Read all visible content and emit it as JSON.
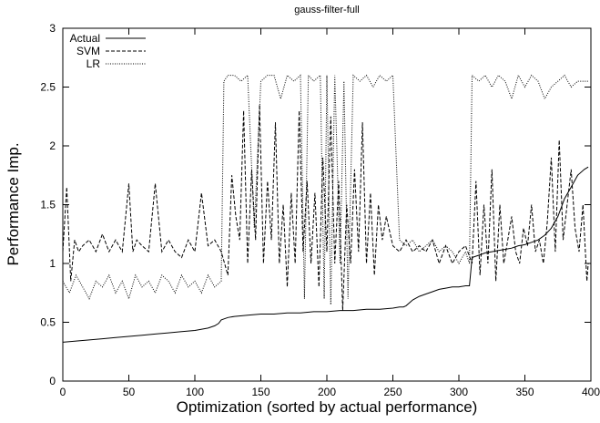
{
  "chart_data": {
    "type": "line",
    "title": "gauss-filter-full",
    "xlabel": "Optimization (sorted by actual performance)",
    "ylabel": "Performance Imp.",
    "xlim": [
      0,
      400
    ],
    "ylim": [
      0,
      3
    ],
    "xticks": [
      0,
      50,
      100,
      150,
      200,
      250,
      300,
      350,
      400
    ],
    "yticks": [
      0,
      0.5,
      1,
      1.5,
      2,
      2.5,
      3
    ],
    "yticklabels": [
      "0",
      "0.5",
      "1",
      "1.5",
      "2",
      "2.5",
      "3"
    ],
    "grid": false,
    "legend_position": "top-left",
    "series": [
      {
        "name": "Actual",
        "style": "solid",
        "x": [
          0,
          10,
          20,
          30,
          40,
          50,
          60,
          70,
          80,
          90,
          100,
          110,
          115,
          118,
          120,
          125,
          130,
          140,
          150,
          160,
          170,
          180,
          190,
          200,
          210,
          220,
          230,
          240,
          250,
          255,
          258,
          260,
          265,
          270,
          275,
          280,
          285,
          290,
          295,
          300,
          305,
          308,
          310,
          315,
          320,
          325,
          330,
          335,
          340,
          345,
          350,
          355,
          360,
          365,
          370,
          375,
          380,
          385,
          390,
          395,
          398
        ],
        "y": [
          0.33,
          0.34,
          0.35,
          0.36,
          0.37,
          0.38,
          0.39,
          0.4,
          0.41,
          0.42,
          0.43,
          0.45,
          0.47,
          0.49,
          0.52,
          0.54,
          0.55,
          0.56,
          0.57,
          0.57,
          0.58,
          0.58,
          0.59,
          0.59,
          0.6,
          0.6,
          0.61,
          0.61,
          0.62,
          0.63,
          0.63,
          0.64,
          0.69,
          0.72,
          0.74,
          0.76,
          0.78,
          0.79,
          0.8,
          0.8,
          0.81,
          0.81,
          1.05,
          1.07,
          1.09,
          1.1,
          1.11,
          1.12,
          1.13,
          1.15,
          1.16,
          1.18,
          1.2,
          1.24,
          1.3,
          1.4,
          1.55,
          1.65,
          1.75,
          1.8,
          1.82
        ]
      },
      {
        "name": "SVM",
        "style": "dashed",
        "x": [
          0,
          3,
          6,
          9,
          12,
          15,
          20,
          25,
          30,
          35,
          40,
          45,
          50,
          53,
          56,
          60,
          65,
          70,
          75,
          80,
          85,
          90,
          95,
          100,
          105,
          110,
          115,
          120,
          125,
          128,
          131,
          134,
          137,
          140,
          143,
          146,
          149,
          152,
          155,
          158,
          161,
          164,
          167,
          170,
          173,
          176,
          179,
          182,
          185,
          188,
          191,
          194,
          197,
          200,
          203,
          206,
          209,
          212,
          215,
          218,
          221,
          224,
          227,
          230,
          233,
          236,
          239,
          242,
          245,
          250,
          255,
          260,
          265,
          270,
          275,
          280,
          285,
          290,
          295,
          300,
          305,
          310,
          313,
          316,
          319,
          322,
          325,
          328,
          331,
          334,
          337,
          340,
          343,
          346,
          349,
          352,
          355,
          358,
          361,
          364,
          367,
          370,
          373,
          376,
          379,
          382,
          385,
          388,
          391,
          394,
          397,
          398
        ],
        "y": [
          1.1,
          1.65,
          0.85,
          1.2,
          1.1,
          1.15,
          1.2,
          1.1,
          1.25,
          1.1,
          1.2,
          1.1,
          1.68,
          1.1,
          1.2,
          1.15,
          1.1,
          1.68,
          1.1,
          1.2,
          1.1,
          1.05,
          1.2,
          1.1,
          1.6,
          1.15,
          1.2,
          1.1,
          0.9,
          1.75,
          1.4,
          1.2,
          2.3,
          1.0,
          1.8,
          1.2,
          2.35,
          1.0,
          1.7,
          1.2,
          2.2,
          1.0,
          1.5,
          0.8,
          1.6,
          1.0,
          2.3,
          1.1,
          1.7,
          1.0,
          1.6,
          0.8,
          1.9,
          1.1,
          2.25,
          1.0,
          1.7,
          0.6,
          1.5,
          1.0,
          1.8,
          1.1,
          2.2,
          1.0,
          1.6,
          0.9,
          1.5,
          1.2,
          1.4,
          1.15,
          1.1,
          1.2,
          1.1,
          1.15,
          1.1,
          1.2,
          1.0,
          1.15,
          1.0,
          1.1,
          1.15,
          1.0,
          1.7,
          0.9,
          1.5,
          1.0,
          1.8,
          0.85,
          1.5,
          1.0,
          1.2,
          1.4,
          1.1,
          1.0,
          1.3,
          1.15,
          1.5,
          1.1,
          1.2,
          1.0,
          1.35,
          1.9,
          1.1,
          2.05,
          1.2,
          1.5,
          1.8,
          1.3,
          1.1,
          1.5,
          0.85,
          1.0
        ]
      },
      {
        "name": "LR",
        "style": "dotted",
        "x": [
          0,
          5,
          10,
          15,
          20,
          25,
          30,
          35,
          40,
          45,
          50,
          55,
          60,
          65,
          70,
          75,
          80,
          85,
          90,
          95,
          100,
          105,
          110,
          115,
          120,
          122,
          125,
          130,
          135,
          140,
          145,
          150,
          155,
          160,
          165,
          170,
          175,
          180,
          183,
          186,
          190,
          195,
          198,
          200,
          203,
          206,
          210,
          213,
          216,
          220,
          225,
          230,
          235,
          240,
          245,
          250,
          255,
          260,
          265,
          270,
          275,
          280,
          285,
          290,
          295,
          300,
          305,
          308,
          310,
          315,
          320,
          325,
          330,
          335,
          340,
          345,
          350,
          355,
          360,
          365,
          370,
          375,
          380,
          385,
          390,
          395,
          398
        ],
        "y": [
          0.85,
          0.75,
          0.9,
          0.8,
          0.7,
          0.85,
          0.8,
          0.9,
          0.75,
          0.85,
          0.7,
          0.9,
          0.8,
          0.85,
          0.75,
          0.9,
          0.85,
          0.75,
          0.9,
          0.8,
          0.85,
          0.75,
          0.9,
          0.8,
          0.85,
          2.55,
          2.6,
          2.6,
          2.55,
          2.6,
          1.3,
          2.55,
          2.6,
          2.6,
          2.4,
          2.6,
          2.55,
          2.6,
          0.7,
          2.6,
          2.55,
          2.6,
          0.7,
          2.6,
          0.65,
          2.6,
          1.0,
          2.55,
          0.7,
          2.6,
          2.55,
          2.6,
          2.5,
          2.6,
          2.55,
          2.6,
          1.2,
          1.15,
          1.2,
          1.1,
          1.15,
          1.2,
          1.1,
          1.15,
          1.1,
          1.0,
          1.1,
          1.0,
          2.6,
          2.55,
          2.6,
          2.5,
          2.6,
          2.55,
          2.4,
          2.6,
          2.5,
          2.6,
          2.55,
          2.4,
          2.5,
          2.55,
          2.6,
          2.5,
          2.55,
          2.55,
          2.55
        ]
      }
    ]
  }
}
